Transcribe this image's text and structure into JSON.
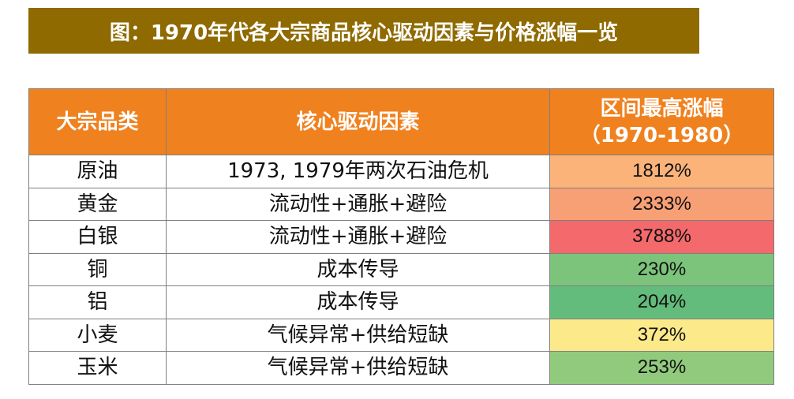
{
  "title": "图：1970年代各大宗商品核心驱动因素与价格涨幅一览",
  "table": {
    "headers": {
      "category": "大宗品类",
      "driver": "核心驱动因素",
      "increase_line1": "区间最高涨幅",
      "increase_line2": "（1970-1980）"
    },
    "rows": [
      {
        "category": "原油",
        "driver": "1973, 1979年两次石油危机",
        "increase": "1812%",
        "color": "#fbb37a"
      },
      {
        "category": "黄金",
        "driver": "流动性+通胀+避险",
        "increase": "2333%",
        "color": "#f8a075"
      },
      {
        "category": "白银",
        "driver": "流动性+通胀+避险",
        "increase": "3788%",
        "color": "#f4696b"
      },
      {
        "category": "铜",
        "driver": "成本传导",
        "increase": "230%",
        "color": "#7cc47b"
      },
      {
        "category": "铝",
        "driver": "成本传导",
        "increase": "204%",
        "color": "#63bc7b"
      },
      {
        "category": "小麦",
        "driver": "气候异常+供给短缺",
        "increase": "372%",
        "color": "#fce98a"
      },
      {
        "category": "玉米",
        "driver": "气候异常+供给短缺",
        "increase": "253%",
        "color": "#91ca7d"
      }
    ]
  },
  "colors": {
    "title_background": "#8f6a00",
    "header_background": "#f0811f"
  }
}
